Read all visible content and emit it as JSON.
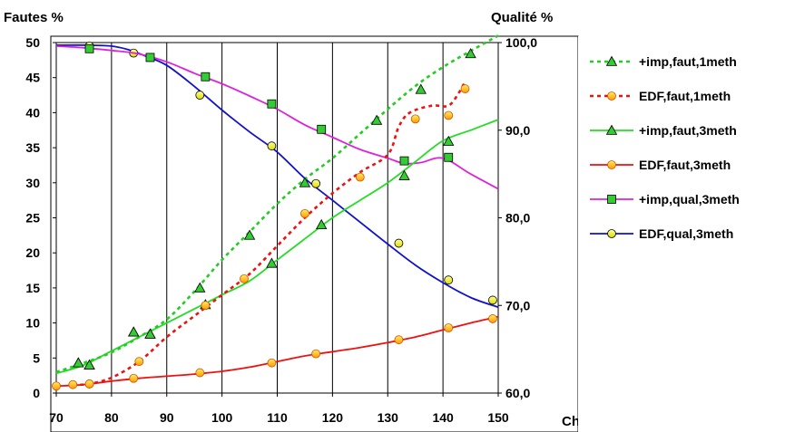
{
  "chart_data": {
    "type": "line",
    "title": "",
    "xlabel": "Charge %",
    "ylabel_left": "Fautes %",
    "ylabel_right": "Qualité %",
    "xlim": [
      70,
      150
    ],
    "ylim_left": [
      0,
      50
    ],
    "ylim_right": [
      60,
      100
    ],
    "x_ticks": [
      "70",
      "80",
      "90",
      "100",
      "110",
      "120",
      "130",
      "140",
      "150"
    ],
    "y_left_ticks": [
      "0",
      "5",
      "10",
      "15",
      "20",
      "25",
      "30",
      "35",
      "40",
      "45",
      "50"
    ],
    "y_right_ticks": [
      "60,0",
      "70,0",
      "80,0",
      "90,0",
      "100,0"
    ],
    "grid": "vertical",
    "legend_position": "right",
    "series": [
      {
        "name": "+imp,faut,1meth",
        "axis": "left",
        "color": "#22cc22",
        "dash": true,
        "marker": "triangle-green",
        "line": [
          [
            70,
            3.0
          ],
          [
            75,
            4.3
          ],
          [
            80,
            5.8
          ],
          [
            85,
            8.0
          ],
          [
            90,
            10.5
          ],
          [
            95,
            14.5
          ],
          [
            100,
            19.0
          ],
          [
            105,
            23.0
          ],
          [
            110,
            27.0
          ],
          [
            115,
            30.5
          ],
          [
            120,
            33.5
          ],
          [
            125,
            37.0
          ],
          [
            130,
            40.5
          ],
          [
            135,
            43.8
          ],
          [
            140,
            46.5
          ],
          [
            145,
            48.8
          ],
          [
            150,
            51.0
          ]
        ],
        "markers": [
          [
            74,
            4.3
          ],
          [
            76,
            4.0
          ],
          [
            84,
            8.7
          ],
          [
            87,
            8.4
          ],
          [
            96,
            15.0
          ],
          [
            105,
            22.5
          ],
          [
            115,
            30.0
          ],
          [
            128,
            38.9
          ],
          [
            136,
            43.3
          ],
          [
            145,
            48.4
          ]
        ]
      },
      {
        "name": "EDF,faut,1meth",
        "axis": "left",
        "color": "#ee1111",
        "dash": true,
        "marker": "circle-orange",
        "line": [
          [
            73,
            1.2
          ],
          [
            76,
            1.3
          ],
          [
            80,
            2.2
          ],
          [
            85,
            4.5
          ],
          [
            90,
            8.0
          ],
          [
            95,
            11.0
          ],
          [
            100,
            14.0
          ],
          [
            105,
            17.0
          ],
          [
            110,
            21.0
          ],
          [
            115,
            25.0
          ],
          [
            120,
            28.5
          ],
          [
            125,
            31.5
          ],
          [
            130,
            34.0
          ],
          [
            132,
            38.0
          ],
          [
            134,
            40.0
          ],
          [
            138,
            41.0
          ],
          [
            141,
            41.0
          ],
          [
            143,
            43.0
          ],
          [
            144,
            44.5
          ]
        ],
        "markers": [
          [
            73,
            1.2
          ],
          [
            76,
            1.3
          ],
          [
            85,
            4.5
          ],
          [
            97,
            12.5
          ],
          [
            104,
            16.3
          ],
          [
            115,
            25.6
          ],
          [
            125,
            30.8
          ],
          [
            135,
            39.1
          ],
          [
            141,
            39.6
          ],
          [
            144,
            43.4
          ]
        ]
      },
      {
        "name": "+imp,faut,3meth",
        "axis": "left",
        "color": "#22dd22",
        "dash": false,
        "marker": "triangle-green",
        "line": [
          [
            70,
            2.8
          ],
          [
            75,
            4.0
          ],
          [
            80,
            6.0
          ],
          [
            85,
            8.0
          ],
          [
            90,
            10.0
          ],
          [
            95,
            12.0
          ],
          [
            100,
            14.0
          ],
          [
            105,
            16.0
          ],
          [
            110,
            19.0
          ],
          [
            115,
            22.0
          ],
          [
            120,
            25.0
          ],
          [
            125,
            27.5
          ],
          [
            130,
            30.0
          ],
          [
            135,
            33.0
          ],
          [
            140,
            36.0
          ],
          [
            145,
            37.5
          ],
          [
            150,
            39.0
          ]
        ],
        "markers": [
          [
            74,
            4.3
          ],
          [
            76,
            4.0
          ],
          [
            84,
            8.7
          ],
          [
            87,
            8.4
          ],
          [
            97,
            12.6
          ],
          [
            109,
            18.5
          ],
          [
            118,
            24.0
          ],
          [
            133,
            31.0
          ],
          [
            141,
            35.9
          ]
        ]
      },
      {
        "name": "EDF,faut,3meth",
        "axis": "left",
        "color": "#ee1111",
        "dash": false,
        "marker": "circle-orange",
        "line": [
          [
            70,
            1.0
          ],
          [
            75,
            1.2
          ],
          [
            80,
            1.7
          ],
          [
            85,
            2.1
          ],
          [
            90,
            2.4
          ],
          [
            95,
            2.7
          ],
          [
            100,
            3.1
          ],
          [
            105,
            3.7
          ],
          [
            110,
            4.5
          ],
          [
            115,
            5.3
          ],
          [
            120,
            5.9
          ],
          [
            125,
            6.5
          ],
          [
            130,
            7.2
          ],
          [
            135,
            8.0
          ],
          [
            140,
            9.0
          ],
          [
            145,
            10.0
          ],
          [
            150,
            10.9
          ]
        ],
        "markers": [
          [
            70,
            1.0
          ],
          [
            76,
            1.3
          ],
          [
            84,
            2.1
          ],
          [
            96,
            2.9
          ],
          [
            109,
            4.3
          ],
          [
            117,
            5.6
          ],
          [
            132,
            7.6
          ],
          [
            141,
            9.3
          ],
          [
            149,
            10.6
          ]
        ]
      },
      {
        "name": "+imp,qual,3meth",
        "axis": "right",
        "color": "#dd22dd",
        "dash": false,
        "marker": "square-green",
        "line": [
          [
            70,
            99.6
          ],
          [
            75,
            99.4
          ],
          [
            80,
            99.1
          ],
          [
            85,
            98.7
          ],
          [
            90,
            97.8
          ],
          [
            95,
            96.5
          ],
          [
            100,
            95.3
          ],
          [
            105,
            93.9
          ],
          [
            110,
            92.4
          ],
          [
            115,
            90.6
          ],
          [
            120,
            89.2
          ],
          [
            125,
            87.8
          ],
          [
            130,
            86.8
          ],
          [
            133,
            86.2
          ],
          [
            136,
            86.3
          ],
          [
            140,
            86.8
          ],
          [
            145,
            85.0
          ],
          [
            150,
            83.3
          ]
        ],
        "markers": [
          [
            76,
            99.3
          ],
          [
            87,
            98.3
          ],
          [
            97,
            96.1
          ],
          [
            109,
            93.0
          ],
          [
            118,
            90.1
          ],
          [
            133,
            86.5
          ],
          [
            141,
            86.9
          ]
        ]
      },
      {
        "name": "EDF,qual,3meth",
        "axis": "right",
        "color": "#1111cc",
        "dash": false,
        "marker": "circle-yellow",
        "line": [
          [
            70,
            99.7
          ],
          [
            76,
            99.7
          ],
          [
            80,
            99.6
          ],
          [
            83,
            99.2
          ],
          [
            86,
            98.5
          ],
          [
            90,
            97.4
          ],
          [
            95,
            95.0
          ],
          [
            100,
            92.3
          ],
          [
            105,
            89.8
          ],
          [
            110,
            87.5
          ],
          [
            115,
            84.5
          ],
          [
            120,
            82.0
          ],
          [
            125,
            79.5
          ],
          [
            130,
            77.0
          ],
          [
            135,
            74.6
          ],
          [
            140,
            72.6
          ],
          [
            145,
            70.9
          ],
          [
            150,
            69.8
          ]
        ],
        "markers": [
          [
            76,
            99.6
          ],
          [
            84,
            98.8
          ],
          [
            96,
            94.0
          ],
          [
            109,
            88.2
          ],
          [
            117,
            83.9
          ],
          [
            132,
            77.1
          ],
          [
            141,
            72.9
          ],
          [
            149,
            70.6
          ]
        ]
      }
    ]
  }
}
